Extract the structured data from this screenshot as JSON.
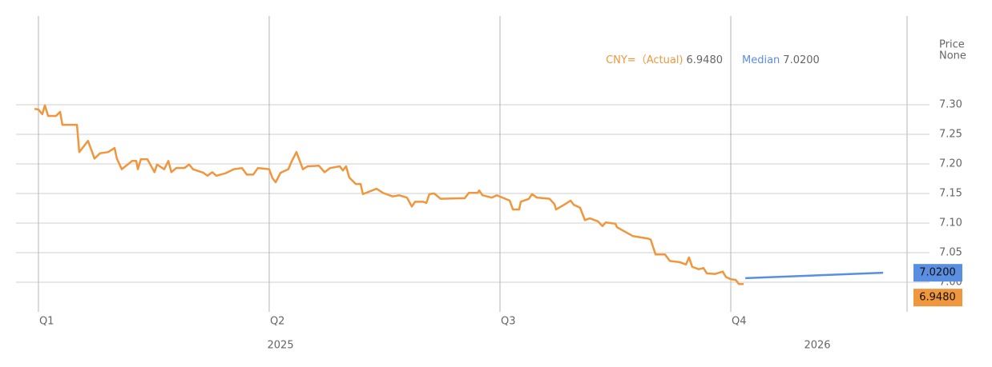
{
  "chart_data": {
    "type": "line",
    "ylabel": "Price",
    "ylabel_unit": "None",
    "xlim": [
      -0.097,
      3.861
    ],
    "ylim": [
      6.95,
      7.45
    ],
    "xticks": [
      {
        "value": 0,
        "label": "Q1"
      },
      {
        "value": 1,
        "label": "Q2"
      },
      {
        "value": 2,
        "label": "Q3"
      },
      {
        "value": 3,
        "label": "Q4"
      }
    ],
    "year_labels": [
      {
        "value": 1.049,
        "label": "2025"
      },
      {
        "value": 3.375,
        "label": "2026"
      }
    ],
    "yticks": [
      {
        "value": 7.3,
        "label": "7.30"
      },
      {
        "value": 7.25,
        "label": "7.25"
      },
      {
        "value": 7.2,
        "label": "7.20"
      },
      {
        "value": 7.15,
        "label": "7.15"
      },
      {
        "value": 7.1,
        "label": "7.10"
      },
      {
        "value": 7.05,
        "label": "7.05"
      },
      {
        "value": 7,
        "label": "7.00"
      }
    ],
    "grid": true,
    "series": [
      {
        "name": "CNY=（Actual)",
        "legend_value": "6.9480",
        "color": "#f0963c",
        "x": [
          -0.017,
          0,
          0.017,
          0.028,
          0.042,
          0.076,
          0.094,
          0.104,
          0.167,
          0.177,
          0.215,
          0.243,
          0.267,
          0.302,
          0.33,
          0.34,
          0.361,
          0.406,
          0.424,
          0.431,
          0.444,
          0.472,
          0.503,
          0.514,
          0.545,
          0.563,
          0.576,
          0.597,
          0.632,
          0.653,
          0.67,
          0.715,
          0.733,
          0.753,
          0.771,
          0.809,
          0.847,
          0.882,
          0.903,
          0.931,
          0.951,
          1,
          1.014,
          1.028,
          1.049,
          1.083,
          1.097,
          1.118,
          1.146,
          1.167,
          1.215,
          1.24,
          1.264,
          1.306,
          1.319,
          1.333,
          1.347,
          1.375,
          1.396,
          1.406,
          1.465,
          1.493,
          1.535,
          1.563,
          1.597,
          1.618,
          1.632,
          1.667,
          1.681,
          1.694,
          1.715,
          1.743,
          1.847,
          1.865,
          1.903,
          1.91,
          1.924,
          1.965,
          1.986,
          2.042,
          2.056,
          2.083,
          2.09,
          2.125,
          2.139,
          2.16,
          2.215,
          2.236,
          2.243,
          2.278,
          2.306,
          2.319,
          2.347,
          2.368,
          2.389,
          2.424,
          2.444,
          2.458,
          2.5,
          2.507,
          2.576,
          2.639,
          2.653,
          2.674,
          2.715,
          2.736,
          2.778,
          2.806,
          2.819,
          2.833,
          2.861,
          2.882,
          2.896,
          2.931,
          2.965,
          2.979,
          3,
          3.021,
          3.035,
          3.056
        ],
        "values": [
          7.293,
          7.292,
          7.284,
          7.299,
          7.281,
          7.281,
          7.288,
          7.266,
          7.266,
          7.22,
          7.239,
          7.209,
          7.218,
          7.22,
          7.227,
          7.209,
          7.191,
          7.205,
          7.205,
          7.191,
          7.208,
          7.208,
          7.186,
          7.199,
          7.191,
          7.205,
          7.186,
          7.193,
          7.193,
          7.199,
          7.191,
          7.185,
          7.18,
          7.186,
          7.18,
          7.184,
          7.191,
          7.193,
          7.182,
          7.182,
          7.193,
          7.191,
          7.176,
          7.169,
          7.185,
          7.191,
          7.204,
          7.22,
          7.191,
          7.196,
          7.197,
          7.186,
          7.193,
          7.196,
          7.189,
          7.196,
          7.177,
          7.166,
          7.166,
          7.149,
          7.158,
          7.151,
          7.145,
          7.147,
          7.143,
          7.128,
          7.136,
          7.136,
          7.134,
          7.149,
          7.15,
          7.141,
          7.142,
          7.151,
          7.151,
          7.155,
          7.147,
          7.143,
          7.147,
          7.138,
          7.123,
          7.123,
          7.136,
          7.141,
          7.149,
          7.143,
          7.141,
          7.132,
          7.123,
          7.131,
          7.138,
          7.131,
          7.126,
          7.105,
          7.108,
          7.103,
          7.095,
          7.101,
          7.099,
          7.093,
          7.078,
          7.074,
          7.072,
          7.047,
          7.047,
          7.036,
          7.034,
          7.03,
          7.042,
          7.026,
          7.022,
          7.024,
          7.015,
          7.014,
          7.018,
          7.009,
          7.005,
          7.004,
          6.997,
          6.997
        ]
      },
      {
        "name": "Median",
        "legend_value": "7.0200",
        "color": "#5a8ee0",
        "x": [
          3.063,
          3.66
        ],
        "values": [
          7.007,
          7.016
        ]
      }
    ]
  }
}
